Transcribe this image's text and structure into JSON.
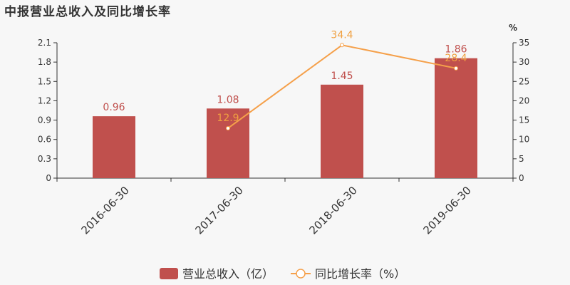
{
  "title": "中报营业总收入及同比增长率",
  "colors": {
    "bar": "#c0504d",
    "line": "#f5a04a",
    "axis": "#333333"
  },
  "chart_data": {
    "type": "bar",
    "categories": [
      "2016-06-30",
      "2017-06-30",
      "2018-06-30",
      "2019-06-30"
    ],
    "series": [
      {
        "name": "营业总收入（亿）",
        "type": "bar",
        "axis": "left",
        "values": [
          0.96,
          1.08,
          1.45,
          1.86
        ],
        "labels": [
          "0.96",
          "1.08",
          "1.45",
          "1.86"
        ]
      },
      {
        "name": "同比增长率（%）",
        "type": "line",
        "axis": "right",
        "values": [
          null,
          12.9,
          34.4,
          28.4
        ],
        "labels": [
          "",
          "12.9",
          "34.4",
          "28.4"
        ]
      }
    ],
    "y_left": {
      "min": 0,
      "max": 2.1,
      "ticks": [
        "0",
        "0.3",
        "0.6",
        "0.9",
        "1.2",
        "1.5",
        "1.8",
        "2.1"
      ]
    },
    "y_right": {
      "min": 0,
      "max": 35,
      "unit": "%",
      "ticks": [
        "0",
        "5",
        "10",
        "15",
        "20",
        "25",
        "30",
        "35"
      ]
    },
    "legend_position": "bottom-center",
    "grid": false
  }
}
